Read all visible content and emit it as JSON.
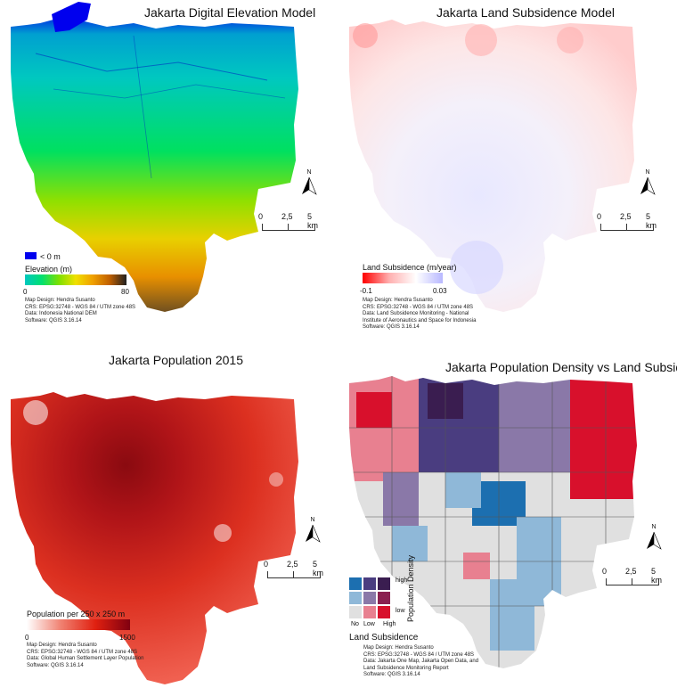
{
  "panels": {
    "dem": {
      "title": "Jakarta Digital Elevation Model",
      "legend": {
        "title": "Elevation (m)",
        "min": "0",
        "max": "80",
        "below_zero": "< 0 m",
        "ramp": [
          "#00c8c0",
          "#00e070",
          "#7de000",
          "#f0e000",
          "#f0a000",
          "#c06000",
          "#202020"
        ],
        "below_color": "#0000ee"
      },
      "scale": {
        "ticks": [
          "0",
          "2,5",
          "5 km"
        ]
      },
      "credits": [
        "Map Design: Hendra Susanto",
        "CRS: EPSG:32748 - WGS 84 / UTM zone 48S",
        "Data: Indonesia National DEM",
        "Software: QGIS 3.16.14"
      ]
    },
    "subsidence": {
      "title": "Jakarta Land Subsidence Model",
      "legend": {
        "title": "Land Subsidence (m/year)",
        "min": "-0.1",
        "max": "0.03",
        "ramp": [
          "#ff0000",
          "#ffb0b0",
          "#ffffff",
          "#b8b8ff"
        ]
      },
      "scale": {
        "ticks": [
          "0",
          "2,5",
          "5 km"
        ]
      },
      "credits": [
        "Map Design: Hendra Susanto",
        "CRS: EPSG:32748 - WGS 84 / UTM zone 48S",
        "Data: Land Subsidence Monitoring - National",
        "Institute of Aeronautics and Space for Indonesia",
        "Software: QGIS 3.16.14"
      ]
    },
    "population": {
      "title": "Jakarta Population 2015",
      "legend": {
        "title": "Population per 250 x 250 m",
        "min": "0",
        "max": "1500",
        "ramp": [
          "#ffffff",
          "#f08070",
          "#e02010",
          "#800010"
        ]
      },
      "scale": {
        "ticks": [
          "0",
          "2,5",
          "5 km"
        ]
      },
      "credits": [
        "Map Design: Hendra Susanto",
        "CRS: EPSG:32748 - WGS 84 / UTM zone 48S",
        "Data: Global Human Settlement Layer Population",
        "Software: QGIS 3.16.14"
      ]
    },
    "bivariate": {
      "title": "Jakarta Population Density vs Land Subsidence",
      "legend": {
        "y_label": "Population Density",
        "y_low": "low",
        "y_high": "high",
        "x_label": "Land Subsidence",
        "x_no": "No",
        "x_low": "Low",
        "x_high": "High",
        "grid": [
          [
            "#1c6fb0",
            "#4a3d80",
            "#3a1d50"
          ],
          [
            "#8fb8d8",
            "#8a78a8",
            "#8a2050"
          ],
          [
            "#e0e0e0",
            "#e88090",
            "#d8102c"
          ]
        ]
      },
      "scale": {
        "ticks": [
          "0",
          "2,5",
          "5 km"
        ]
      },
      "credits": [
        "Map Design: Hendra Susanto",
        "CRS: EPSG:32748 - WGS 84 / UTM zone 48S",
        "Data: Jakarta One Map, Jakarta Open Data, and",
        "Land Subsidence Monitoring Report",
        "Software: QGIS 3.16.14"
      ]
    }
  },
  "north_label": "N"
}
